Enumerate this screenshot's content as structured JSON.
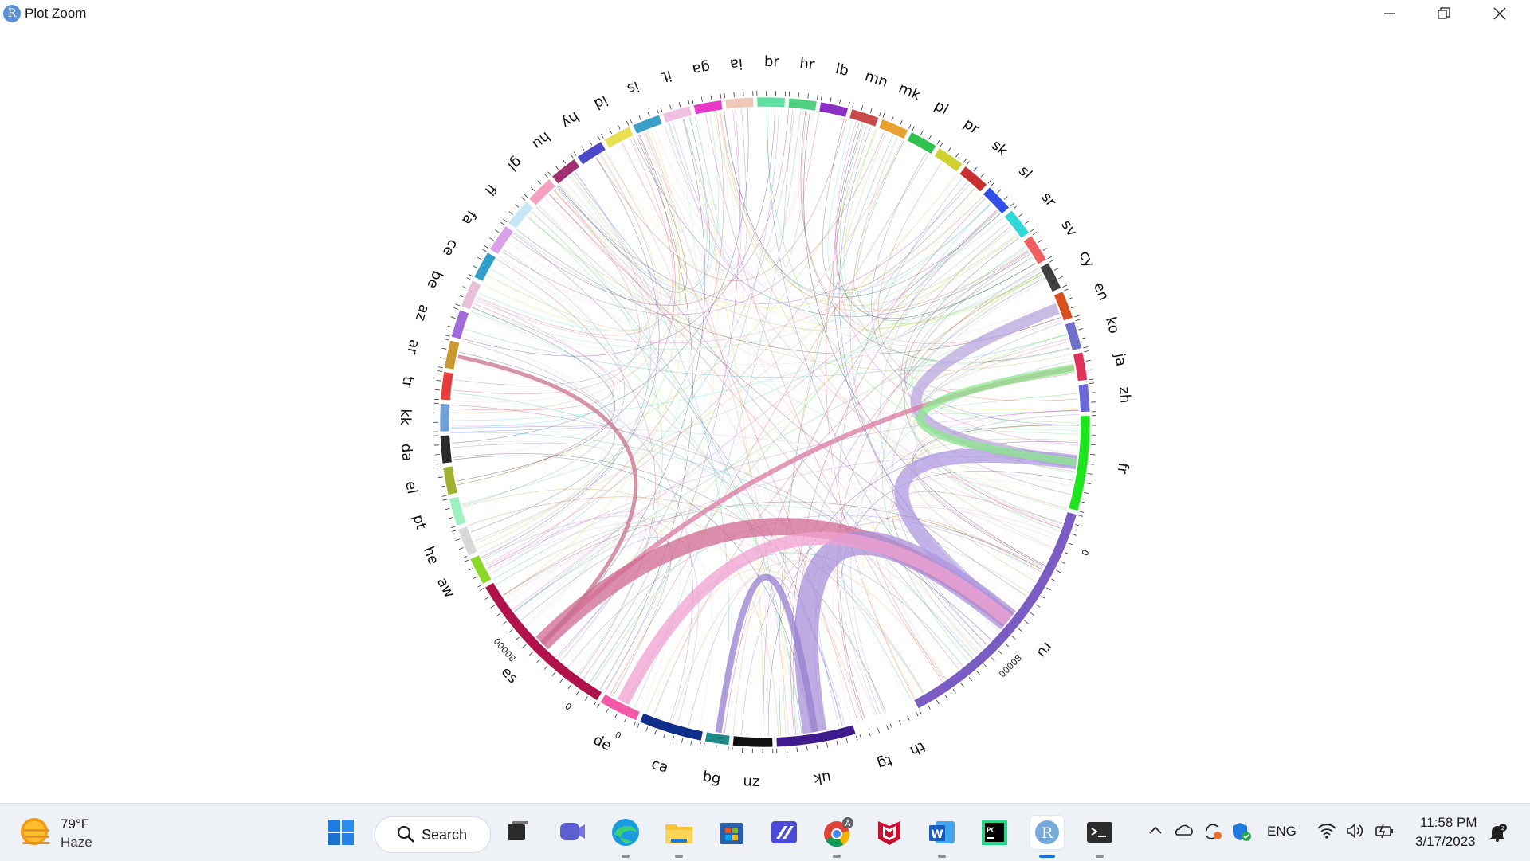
{
  "window": {
    "title": "Plot Zoom",
    "app_icon_letter": "R",
    "controls": [
      "minimize-icon",
      "restore-icon",
      "close-icon"
    ]
  },
  "chart_data": {
    "type": "chord",
    "sectors": [
      {
        "name": "fr",
        "color": "#1ee51e",
        "ticks": []
      },
      {
        "name": "ru",
        "color": "#7b5cc2",
        "ticks": [
          "0",
          "80000"
        ]
      },
      {
        "name": "th",
        "color": "#ffffff",
        "ticks": []
      },
      {
        "name": "tg",
        "color": "#ffffff",
        "ticks": []
      },
      {
        "name": "uk",
        "color": "#3f1a8c",
        "ticks": []
      },
      {
        "name": "uz",
        "color": "#111111",
        "ticks": []
      },
      {
        "name": "bg",
        "color": "#1f8a86",
        "ticks": []
      },
      {
        "name": "ca",
        "color": "#0f2d8a",
        "ticks": []
      },
      {
        "name": "de",
        "color": "#f25aa8",
        "ticks": [
          "0"
        ]
      },
      {
        "name": "es",
        "color": "#b0124a",
        "ticks": [
          "0",
          "80000"
        ]
      },
      {
        "name": "aw",
        "color": "#8ad82a",
        "ticks": []
      },
      {
        "name": "he",
        "color": "#d8d8d8",
        "ticks": []
      },
      {
        "name": "pt",
        "color": "#9ef0c0",
        "ticks": []
      },
      {
        "name": "el",
        "color": "#a0b030",
        "ticks": []
      },
      {
        "name": "da",
        "color": "#2a2a2a",
        "ticks": []
      },
      {
        "name": "kk",
        "color": "#6fa0d8",
        "ticks": []
      },
      {
        "name": "tr",
        "color": "#e83a3a",
        "ticks": []
      },
      {
        "name": "ar",
        "color": "#c89a30",
        "ticks": []
      },
      {
        "name": "az",
        "color": "#a06ad8",
        "ticks": []
      },
      {
        "name": "be",
        "color": "#e8c0d8",
        "ticks": []
      },
      {
        "name": "ce",
        "color": "#30a0c8",
        "ticks": []
      },
      {
        "name": "fa",
        "color": "#d8a0e8",
        "ticks": []
      },
      {
        "name": "fi",
        "color": "#c8e8f8",
        "ticks": []
      },
      {
        "name": "gl",
        "color": "#f8a0c0",
        "ticks": []
      },
      {
        "name": "hu",
        "color": "#a03070",
        "ticks": []
      },
      {
        "name": "hy",
        "color": "#4a4ac8",
        "ticks": []
      },
      {
        "name": "id",
        "color": "#e8e050",
        "ticks": []
      },
      {
        "name": "is",
        "color": "#3aa0c8",
        "ticks": []
      },
      {
        "name": "it",
        "color": "#f0c0e0",
        "ticks": []
      },
      {
        "name": "ga",
        "color": "#e838c8",
        "ticks": []
      },
      {
        "name": "ia",
        "color": "#f0c8b8",
        "ticks": []
      },
      {
        "name": "br",
        "color": "#60e0a0",
        "ticks": []
      },
      {
        "name": "hr",
        "color": "#50d080",
        "ticks": []
      },
      {
        "name": "lb",
        "color": "#8a30c8",
        "ticks": []
      },
      {
        "name": "mn",
        "color": "#c84a4a",
        "ticks": []
      },
      {
        "name": "mk",
        "color": "#e8a030",
        "ticks": []
      },
      {
        "name": "pl",
        "color": "#30c050",
        "ticks": []
      },
      {
        "name": "pr",
        "color": "#d0d030",
        "ticks": []
      },
      {
        "name": "sk",
        "color": "#c83030",
        "ticks": []
      },
      {
        "name": "sl",
        "color": "#3050e8",
        "ticks": []
      },
      {
        "name": "sr",
        "color": "#30d8d8",
        "ticks": []
      },
      {
        "name": "sv",
        "color": "#f06060",
        "ticks": []
      },
      {
        "name": "cy",
        "color": "#404040",
        "ticks": []
      },
      {
        "name": "en",
        "color": "#d85020",
        "ticks": []
      },
      {
        "name": "ko",
        "color": "#7070c8",
        "ticks": []
      },
      {
        "name": "ja",
        "color": "#e0305a",
        "ticks": []
      },
      {
        "name": "zh",
        "color": "#6a6ad8",
        "ticks": []
      }
    ],
    "main_links": [
      {
        "from": "en",
        "to": "fr",
        "color": "#b8a6dc",
        "weight": 14
      },
      {
        "from": "ja",
        "to": "es",
        "color": "#d97aa0",
        "weight": 6
      },
      {
        "from": "es",
        "to": "ru",
        "color": "#d06a90",
        "weight": 22
      },
      {
        "from": "ru",
        "to": "uk",
        "color": "#a890d8",
        "weight": 30
      },
      {
        "from": "ru",
        "to": "fr",
        "color": "#b09ae0",
        "weight": 18
      },
      {
        "from": "fr",
        "to": "ja",
        "color": "#8ce88c",
        "weight": 10
      },
      {
        "from": "de",
        "to": "ru",
        "color": "#f0a0d0",
        "weight": 16
      },
      {
        "from": "es",
        "to": "ar",
        "color": "#c8708c",
        "weight": 5
      },
      {
        "from": "uk",
        "to": "bg",
        "color": "#9880d0",
        "weight": 8
      }
    ],
    "title": "",
    "xlabel": "",
    "ylabel": ""
  },
  "taskbar": {
    "weather": {
      "temp": "79°F",
      "condition": "Haze"
    },
    "search_label": "Search",
    "pinned": [
      {
        "name": "start-icon"
      },
      {
        "name": "task-view-icon"
      },
      {
        "name": "chat-icon"
      },
      {
        "name": "edge-icon"
      },
      {
        "name": "file-explorer-icon"
      },
      {
        "name": "store-icon"
      },
      {
        "name": "vscode-icon"
      },
      {
        "name": "chrome-icon"
      },
      {
        "name": "mcafee-icon"
      },
      {
        "name": "word-icon"
      },
      {
        "name": "pycharm-icon"
      },
      {
        "name": "rstudio-icon"
      },
      {
        "name": "terminal-icon"
      }
    ],
    "tray": {
      "language": "ENG",
      "time": "11:58 PM",
      "date": "3/17/2023"
    }
  }
}
